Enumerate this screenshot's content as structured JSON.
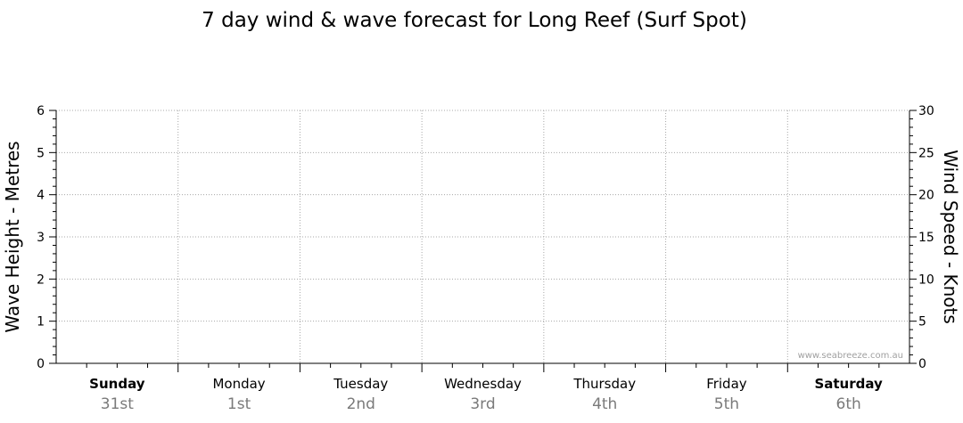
{
  "chart_data": {
    "type": "line",
    "title": "7 day wind & wave forecast for Long Reef  (Surf Spot)",
    "ylabel": "Wave Height - Metres",
    "y2label": "Wind Speed - Knots",
    "ylim": [
      0,
      6
    ],
    "y2lim": [
      0,
      30
    ],
    "yticks": [
      "0",
      "1",
      "2",
      "3",
      "4",
      "5",
      "6"
    ],
    "y2ticks": [
      "0",
      "5",
      "10",
      "15",
      "20",
      "25",
      "30"
    ],
    "days": [
      {
        "day": "Sunday",
        "date": "31st",
        "bold": true
      },
      {
        "day": "Monday",
        "date": "1st",
        "bold": false
      },
      {
        "day": "Tuesday",
        "date": "2nd",
        "bold": false
      },
      {
        "day": "Wednesday",
        "date": "3rd",
        "bold": false
      },
      {
        "day": "Thursday",
        "date": "4th",
        "bold": false
      },
      {
        "day": "Friday",
        "date": "5th",
        "bold": false
      },
      {
        "day": "Saturday",
        "date": "6th",
        "bold": true
      }
    ],
    "series": [],
    "grid": true
  },
  "watermark": "www.seabreeze.com.au"
}
